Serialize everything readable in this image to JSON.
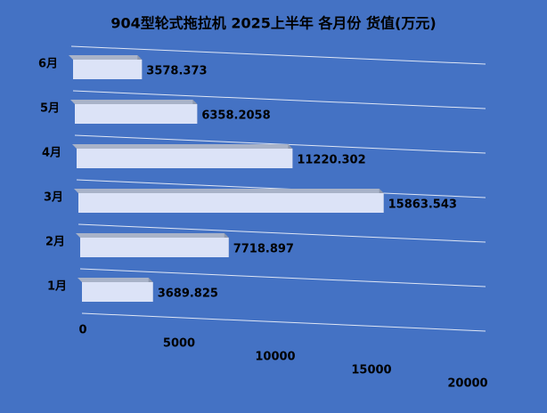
{
  "chart_data": {
    "type": "bar",
    "orientation": "horizontal",
    "title": "904型轮式拖拉机  2025上半年  各月份  货值(万元)",
    "categories": [
      "1月",
      "2月",
      "3月",
      "4月",
      "5月",
      "6月"
    ],
    "values": [
      3689.825,
      7718.897,
      15863.543,
      11220.302,
      6358.2058,
      3578.373
    ],
    "color": "#dce3f7",
    "xlim": [
      0,
      20000
    ],
    "xticks": [
      0,
      5000,
      10000,
      15000,
      20000
    ]
  }
}
